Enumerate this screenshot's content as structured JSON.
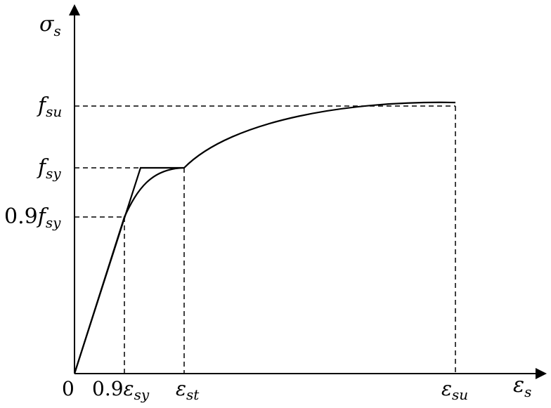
{
  "diagram": {
    "y_axis": {
      "symbol": "σ",
      "sub": "s"
    },
    "x_axis": {
      "symbol": "ε",
      "sub": "s"
    },
    "origin": "0",
    "y_ticks": [
      {
        "prefix": "",
        "symbol": "f",
        "sub": "su"
      },
      {
        "prefix": "",
        "symbol": "f",
        "sub": "sy"
      },
      {
        "prefix": "0.9",
        "symbol": "f",
        "sub": "sy"
      }
    ],
    "x_ticks": [
      {
        "prefix": "0.9",
        "symbol": "ε",
        "sub": "sy"
      },
      {
        "prefix": "",
        "symbol": "ε",
        "sub": "st"
      },
      {
        "prefix": "",
        "symbol": "ε",
        "sub": "su"
      }
    ]
  }
}
